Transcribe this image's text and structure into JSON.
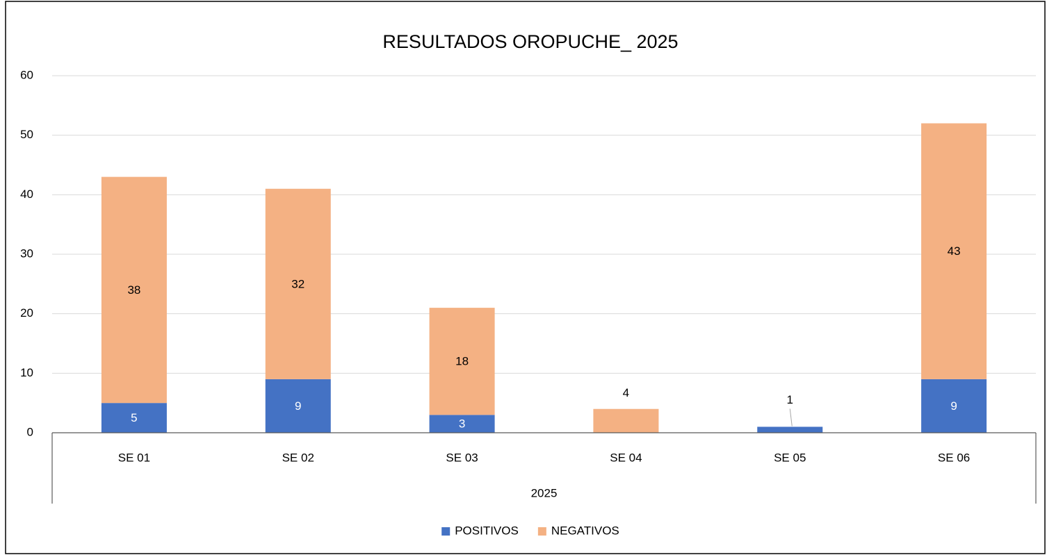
{
  "chart_data": {
    "type": "stacked_bar",
    "title": "RESULTADOS OROPUCHE_ 2025",
    "categories": [
      "SE 01",
      "SE 02",
      "SE 03",
      "SE 04",
      "SE 05",
      "SE 06"
    ],
    "category_group": "2025",
    "series": [
      {
        "name": "POSITIVOS",
        "color": "#4472c4",
        "label_color": "#ffffff",
        "values": [
          5,
          9,
          3,
          null,
          1,
          9
        ]
      },
      {
        "name": "NEGATIVOS",
        "color": "#f4b183",
        "label_color": "#000000",
        "values": [
          38,
          32,
          18,
          4,
          null,
          43
        ]
      }
    ],
    "ylim": [
      0,
      60
    ],
    "yticks": [
      0,
      10,
      20,
      30,
      40,
      50,
      60
    ],
    "grid": true,
    "legend": "bottom"
  }
}
